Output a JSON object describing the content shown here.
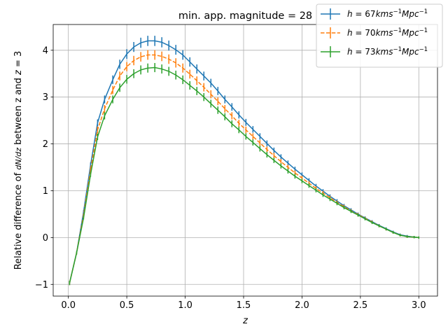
{
  "chart_data": {
    "type": "line",
    "title": "min. app. magnitude = 28",
    "xlabel": "z",
    "ylabel": "Relative difference of dN/dz between z and z = 3",
    "xlim": [
      -0.13,
      3.16
    ],
    "ylim": [
      -1.25,
      4.55
    ],
    "xticks": [
      0.0,
      0.5,
      1.0,
      1.5,
      2.0,
      2.5,
      3.0
    ],
    "xtick_labels": [
      "0.0",
      "0.5",
      "1.0",
      "1.5",
      "2.0",
      "2.5",
      "3.0"
    ],
    "yticks": [
      -1,
      0,
      1,
      2,
      3,
      4
    ],
    "ytick_labels": [
      "−1",
      "0",
      "1",
      "2",
      "3",
      "4"
    ],
    "grid": true,
    "legend_position": "top-right",
    "x": [
      0.01,
      0.07,
      0.13,
      0.19,
      0.25,
      0.31,
      0.38,
      0.44,
      0.5,
      0.56,
      0.62,
      0.68,
      0.74,
      0.8,
      0.86,
      0.92,
      0.98,
      1.04,
      1.1,
      1.16,
      1.22,
      1.28,
      1.34,
      1.4,
      1.46,
      1.52,
      1.58,
      1.64,
      1.7,
      1.76,
      1.82,
      1.88,
      1.94,
      2.0,
      2.06,
      2.12,
      2.18,
      2.24,
      2.3,
      2.36,
      2.42,
      2.48,
      2.54,
      2.6,
      2.66,
      2.72,
      2.78,
      2.84,
      2.9,
      2.96,
      3.0
    ],
    "series": [
      {
        "name": "h = 67 km s⁻¹ Mpc⁻¹",
        "color": "#1f77b4",
        "linestyle": "solid",
        "values": [
          -0.97,
          -0.33,
          0.55,
          1.55,
          2.45,
          2.95,
          3.37,
          3.7,
          3.92,
          4.07,
          4.16,
          4.2,
          4.2,
          4.17,
          4.1,
          4.01,
          3.9,
          3.75,
          3.6,
          3.45,
          3.3,
          3.13,
          2.95,
          2.79,
          2.62,
          2.46,
          2.31,
          2.16,
          2.01,
          1.86,
          1.72,
          1.59,
          1.46,
          1.34,
          1.22,
          1.1,
          0.99,
          0.88,
          0.78,
          0.68,
          0.59,
          0.5,
          0.42,
          0.34,
          0.26,
          0.19,
          0.12,
          0.06,
          0.03,
          0.01,
          0.0
        ]
      },
      {
        "name": "h = 70 km s⁻¹ Mpc⁻¹",
        "color": "#ff7f0e",
        "linestyle": "dashed",
        "values": [
          -0.97,
          -0.33,
          0.48,
          1.45,
          2.3,
          2.75,
          3.15,
          3.45,
          3.65,
          3.78,
          3.86,
          3.9,
          3.9,
          3.87,
          3.81,
          3.73,
          3.62,
          3.49,
          3.35,
          3.21,
          3.06,
          2.91,
          2.75,
          2.6,
          2.44,
          2.3,
          2.16,
          2.02,
          1.88,
          1.75,
          1.62,
          1.5,
          1.38,
          1.27,
          1.16,
          1.05,
          0.95,
          0.85,
          0.75,
          0.66,
          0.57,
          0.49,
          0.41,
          0.33,
          0.25,
          0.18,
          0.11,
          0.05,
          0.02,
          0.01,
          0.0
        ]
      },
      {
        "name": "h = 73 km s⁻¹ Mpc⁻¹",
        "color": "#2ca02c",
        "linestyle": "solid",
        "values": [
          -0.97,
          -0.33,
          0.42,
          1.35,
          2.15,
          2.6,
          2.95,
          3.2,
          3.38,
          3.5,
          3.58,
          3.62,
          3.63,
          3.6,
          3.55,
          3.47,
          3.37,
          3.25,
          3.13,
          3.0,
          2.86,
          2.72,
          2.58,
          2.43,
          2.3,
          2.16,
          2.03,
          1.9,
          1.77,
          1.65,
          1.53,
          1.42,
          1.31,
          1.21,
          1.11,
          1.01,
          0.91,
          0.82,
          0.73,
          0.64,
          0.56,
          0.48,
          0.4,
          0.32,
          0.25,
          0.18,
          0.11,
          0.05,
          0.02,
          0.01,
          0.0
        ]
      }
    ]
  }
}
